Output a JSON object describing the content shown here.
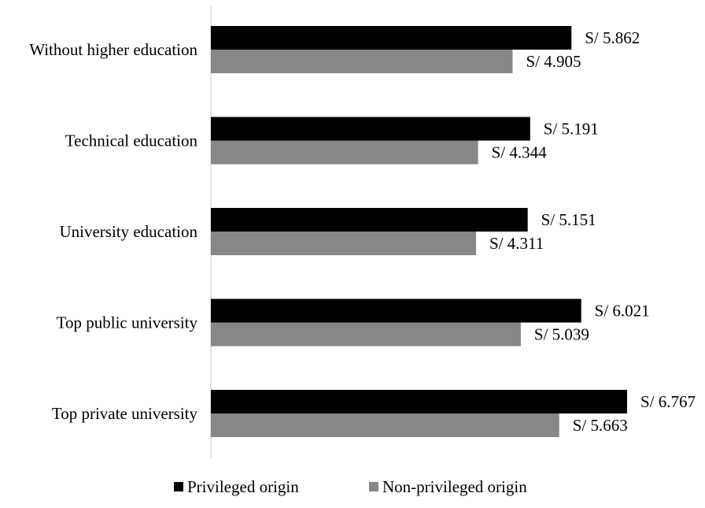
{
  "chart_data": {
    "type": "bar",
    "orientation": "horizontal",
    "categories": [
      "Without higher education",
      "Technical education",
      "University education",
      "Top public university",
      "Top private university"
    ],
    "series": [
      {
        "name": "Privileged origin",
        "color": "#000000",
        "values": [
          5.862,
          5.191,
          5.151,
          6.021,
          6.767
        ],
        "labels": [
          "S/ 5.862",
          "S/ 5.191",
          "S/ 5.151",
          "S/ 6.021",
          "S/ 6.767"
        ]
      },
      {
        "name": "Non-privileged origin",
        "color": "#878787",
        "values": [
          4.905,
          4.344,
          4.311,
          5.039,
          5.663
        ],
        "labels": [
          "S/ 4.905",
          "S/ 4.344",
          "S/ 4.311",
          "S/ 5.039",
          "S/ 5.663"
        ]
      }
    ],
    "xlim": [
      0,
      6.767
    ],
    "grid": false,
    "legend_position": "bottom"
  }
}
